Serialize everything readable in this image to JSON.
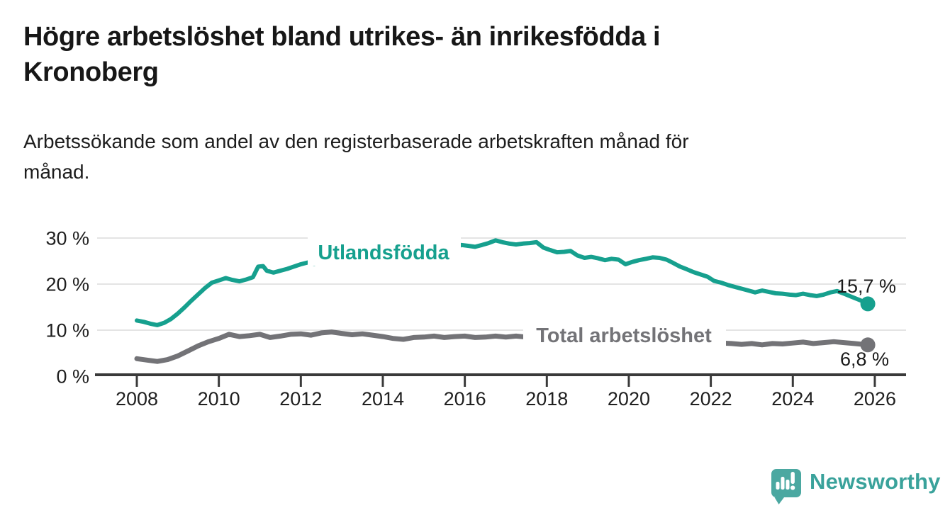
{
  "header": {
    "title": "Högre arbetslöshet bland utrikes- än inrikesfödda i\nKronoberg",
    "subtitle": "Arbetssökande som andel av den registerbaserade arbetskraften månad för\nmånad."
  },
  "footer": {
    "brand": "Newsworthy",
    "brand_color": "#3aa29b",
    "logo_icon": "bar-chart-speech-bubble-icon"
  },
  "chart_data": {
    "type": "line",
    "title": "Högre arbetslöshet bland utrikes- än inrikesfödda i Kronoberg",
    "subtitle": "Arbetssökande som andel av den registerbaserade arbetskraften månad för månad.",
    "grid": "horizontal",
    "legend_position": "inline-labels-on-lines",
    "x_axis": {
      "range": [
        2007.05,
        2026.8
      ],
      "ticks": [
        {
          "value": 2008,
          "label": "2008"
        },
        {
          "value": 2010,
          "label": "2010"
        },
        {
          "value": 2012,
          "label": "2012"
        },
        {
          "value": 2014,
          "label": "2014"
        },
        {
          "value": 2016,
          "label": "2016"
        },
        {
          "value": 2018,
          "label": "2018"
        },
        {
          "value": 2020,
          "label": "2020"
        },
        {
          "value": 2022,
          "label": "2022"
        },
        {
          "value": 2024,
          "label": "2024"
        },
        {
          "value": 2026,
          "label": "2026"
        }
      ]
    },
    "y_axis": {
      "range": [
        0,
        33
      ],
      "unit": "%",
      "ticks": [
        {
          "value": 0,
          "label": "0 %"
        },
        {
          "value": 10,
          "label": "10 %"
        },
        {
          "value": 20,
          "label": "20 %"
        },
        {
          "value": 30,
          "label": "30 %"
        }
      ]
    },
    "series": [
      {
        "name": "Utlandsfödda",
        "color": "#16a08e",
        "end_value": 15.7,
        "end_label": "15,7 %",
        "points": [
          [
            2008.0,
            12.1
          ],
          [
            2008.17,
            11.8
          ],
          [
            2008.33,
            11.4
          ],
          [
            2008.5,
            11.1
          ],
          [
            2008.67,
            11.6
          ],
          [
            2008.83,
            12.4
          ],
          [
            2009.0,
            13.6
          ],
          [
            2009.17,
            15.0
          ],
          [
            2009.33,
            16.4
          ],
          [
            2009.5,
            17.8
          ],
          [
            2009.67,
            19.2
          ],
          [
            2009.83,
            20.3
          ],
          [
            2010.0,
            20.8
          ],
          [
            2010.17,
            21.3
          ],
          [
            2010.33,
            20.9
          ],
          [
            2010.5,
            20.6
          ],
          [
            2010.67,
            21.0
          ],
          [
            2010.83,
            21.5
          ],
          [
            2010.96,
            23.8
          ],
          [
            2011.08,
            23.9
          ],
          [
            2011.17,
            22.9
          ],
          [
            2011.33,
            22.5
          ],
          [
            2011.5,
            22.9
          ],
          [
            2011.67,
            23.3
          ],
          [
            2011.83,
            23.8
          ],
          [
            2012.0,
            24.3
          ],
          [
            2012.17,
            24.7
          ],
          [
            2012.33,
            24.4
          ],
          [
            2012.5,
            24.8
          ],
          [
            2012.75,
            25.1
          ],
          [
            2013.0,
            25.0
          ],
          [
            2013.25,
            25.3
          ],
          [
            2013.5,
            25.1
          ],
          [
            2013.75,
            25.5
          ],
          [
            2014.0,
            25.4
          ],
          [
            2014.25,
            25.8
          ],
          [
            2014.5,
            26.1
          ],
          [
            2014.75,
            26.0
          ],
          [
            2015.0,
            26.4
          ],
          [
            2015.25,
            26.8
          ],
          [
            2015.5,
            27.4
          ],
          [
            2015.75,
            27.9
          ],
          [
            2015.92,
            28.5
          ],
          [
            2016.08,
            28.3
          ],
          [
            2016.25,
            28.1
          ],
          [
            2016.42,
            28.5
          ],
          [
            2016.58,
            28.9
          ],
          [
            2016.75,
            29.5
          ],
          [
            2016.92,
            29.1
          ],
          [
            2017.08,
            28.8
          ],
          [
            2017.25,
            28.6
          ],
          [
            2017.42,
            28.8
          ],
          [
            2017.58,
            28.9
          ],
          [
            2017.75,
            29.1
          ],
          [
            2017.92,
            27.9
          ],
          [
            2018.08,
            27.4
          ],
          [
            2018.25,
            26.9
          ],
          [
            2018.42,
            27.0
          ],
          [
            2018.58,
            27.2
          ],
          [
            2018.75,
            26.2
          ],
          [
            2018.92,
            25.7
          ],
          [
            2019.08,
            25.9
          ],
          [
            2019.25,
            25.6
          ],
          [
            2019.42,
            25.2
          ],
          [
            2019.58,
            25.5
          ],
          [
            2019.75,
            25.3
          ],
          [
            2019.92,
            24.3
          ],
          [
            2020.08,
            24.8
          ],
          [
            2020.25,
            25.2
          ],
          [
            2020.42,
            25.5
          ],
          [
            2020.58,
            25.8
          ],
          [
            2020.75,
            25.7
          ],
          [
            2020.92,
            25.3
          ],
          [
            2021.08,
            24.6
          ],
          [
            2021.25,
            23.8
          ],
          [
            2021.42,
            23.2
          ],
          [
            2021.58,
            22.6
          ],
          [
            2021.75,
            22.1
          ],
          [
            2021.92,
            21.6
          ],
          [
            2022.08,
            20.7
          ],
          [
            2022.25,
            20.3
          ],
          [
            2022.42,
            19.8
          ],
          [
            2022.58,
            19.4
          ],
          [
            2022.75,
            19.0
          ],
          [
            2022.92,
            18.6
          ],
          [
            2023.08,
            18.2
          ],
          [
            2023.25,
            18.6
          ],
          [
            2023.42,
            18.3
          ],
          [
            2023.58,
            18.0
          ],
          [
            2023.75,
            17.9
          ],
          [
            2023.92,
            17.7
          ],
          [
            2024.08,
            17.6
          ],
          [
            2024.25,
            17.9
          ],
          [
            2024.42,
            17.6
          ],
          [
            2024.58,
            17.4
          ],
          [
            2024.75,
            17.7
          ],
          [
            2024.92,
            18.2
          ],
          [
            2025.08,
            18.5
          ],
          [
            2025.25,
            17.9
          ],
          [
            2025.42,
            17.3
          ],
          [
            2025.58,
            16.7
          ],
          [
            2025.75,
            16.1
          ],
          [
            2025.83,
            15.7
          ]
        ]
      },
      {
        "name": "Total arbetslöshet",
        "color": "#737377",
        "end_value": 6.8,
        "end_label": "6,8 %",
        "points": [
          [
            2008.0,
            3.8
          ],
          [
            2008.25,
            3.5
          ],
          [
            2008.5,
            3.2
          ],
          [
            2008.75,
            3.6
          ],
          [
            2009.0,
            4.4
          ],
          [
            2009.25,
            5.5
          ],
          [
            2009.5,
            6.6
          ],
          [
            2009.75,
            7.5
          ],
          [
            2010.0,
            8.2
          ],
          [
            2010.25,
            9.1
          ],
          [
            2010.5,
            8.6
          ],
          [
            2010.75,
            8.8
          ],
          [
            2011.0,
            9.1
          ],
          [
            2011.25,
            8.4
          ],
          [
            2011.5,
            8.7
          ],
          [
            2011.75,
            9.1
          ],
          [
            2012.0,
            9.2
          ],
          [
            2012.25,
            8.9
          ],
          [
            2012.5,
            9.4
          ],
          [
            2012.75,
            9.6
          ],
          [
            2013.0,
            9.3
          ],
          [
            2013.25,
            9.0
          ],
          [
            2013.5,
            9.2
          ],
          [
            2013.75,
            8.9
          ],
          [
            2014.0,
            8.6
          ],
          [
            2014.25,
            8.2
          ],
          [
            2014.5,
            8.0
          ],
          [
            2014.75,
            8.4
          ],
          [
            2015.0,
            8.5
          ],
          [
            2015.25,
            8.7
          ],
          [
            2015.5,
            8.4
          ],
          [
            2015.75,
            8.6
          ],
          [
            2016.0,
            8.7
          ],
          [
            2016.25,
            8.4
          ],
          [
            2016.5,
            8.5
          ],
          [
            2016.75,
            8.7
          ],
          [
            2017.0,
            8.5
          ],
          [
            2017.25,
            8.7
          ],
          [
            2017.5,
            8.5
          ],
          [
            2017.75,
            8.4
          ],
          [
            2018.0,
            8.2
          ],
          [
            2018.25,
            8.4
          ],
          [
            2018.5,
            8.1
          ],
          [
            2018.75,
            8.0
          ],
          [
            2019.0,
            7.9
          ],
          [
            2019.25,
            7.7
          ],
          [
            2019.5,
            7.8
          ],
          [
            2019.75,
            7.6
          ],
          [
            2020.0,
            8.0
          ],
          [
            2020.25,
            8.8
          ],
          [
            2020.5,
            9.3
          ],
          [
            2020.75,
            9.0
          ],
          [
            2021.0,
            8.7
          ],
          [
            2021.25,
            8.3
          ],
          [
            2021.5,
            7.9
          ],
          [
            2021.75,
            7.6
          ],
          [
            2022.0,
            7.4
          ],
          [
            2022.25,
            7.2
          ],
          [
            2022.5,
            7.1
          ],
          [
            2022.75,
            6.9
          ],
          [
            2023.0,
            7.1
          ],
          [
            2023.25,
            6.8
          ],
          [
            2023.5,
            7.1
          ],
          [
            2023.75,
            7.0
          ],
          [
            2024.0,
            7.2
          ],
          [
            2024.25,
            7.4
          ],
          [
            2024.5,
            7.1
          ],
          [
            2024.75,
            7.3
          ],
          [
            2025.0,
            7.5
          ],
          [
            2025.25,
            7.3
          ],
          [
            2025.5,
            7.1
          ],
          [
            2025.83,
            6.8
          ]
        ]
      }
    ]
  }
}
